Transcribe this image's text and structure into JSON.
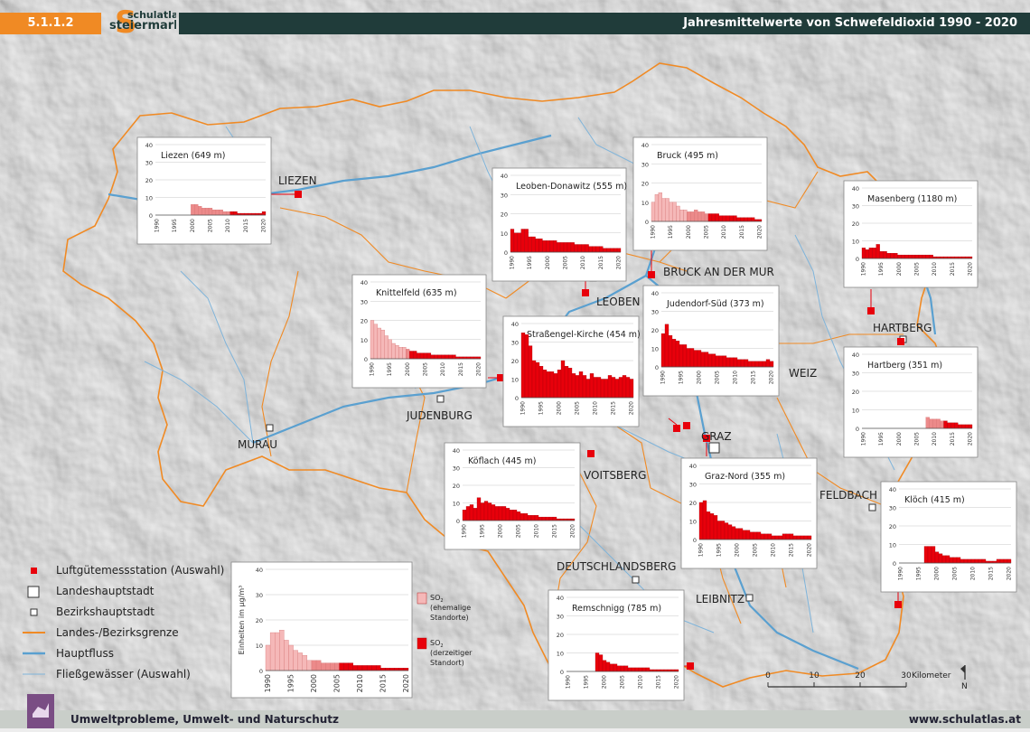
{
  "header": {
    "section_number": "5.1.1.2",
    "logo_line1": "schulatlas",
    "logo_line2": "steiermark",
    "title": "Jahresmittelwerte von Schwefeldioxid 1990 - 2020"
  },
  "footer": {
    "left_text": "Umweltprobleme, Umwelt- und Naturschutz",
    "right_text": "www.schulatlas.at"
  },
  "colors": {
    "header_orange": "#f08a24",
    "header_dark": "#203c3a",
    "former_site": "#f5b8b8",
    "former_site_dark": "#ec8a8a",
    "current_site": "#e8000b",
    "border": "#f08a24",
    "river": "#5aa0d0",
    "footer_icon": "#7a4d84"
  },
  "places": [
    {
      "name": "LIEZEN"
    },
    {
      "name": "LEOBEN"
    },
    {
      "name": "BRUCK AN DER MUR"
    },
    {
      "name": "HARTBERG"
    },
    {
      "name": "WEIZ"
    },
    {
      "name": "GRAZ"
    },
    {
      "name": "JUDENBURG"
    },
    {
      "name": "MURAU"
    },
    {
      "name": "VOITSBERG"
    },
    {
      "name": "FELDBACH"
    },
    {
      "name": "DEUTSCHLANDSBERG"
    },
    {
      "name": "LEIBNITZ"
    }
  ],
  "legend": {
    "items": [
      {
        "label": "Luftgütemessstation (Auswahl)",
        "icon": "station-square-red"
      },
      {
        "label": "Landeshauptstadt",
        "icon": "capital-square"
      },
      {
        "label": "Bezirkshauptstadt",
        "icon": "district-capital-square"
      },
      {
        "label": "Landes-/Bezirksgrenze",
        "icon": "border-line-orange"
      },
      {
        "label": "Hauptfluss",
        "icon": "main-river-line"
      },
      {
        "label": "Fließgewässer (Auswahl)",
        "icon": "stream-line"
      }
    ],
    "former_label": [
      "SO",
      "2",
      "(ehemalige",
      "Standorte)"
    ],
    "current_label": [
      "SO",
      "2",
      "(derzeitiger",
      "Standort)"
    ]
  },
  "scalebar": {
    "ticks": [
      "0",
      "10",
      "20",
      "30"
    ],
    "unit": "Kilometer",
    "north": "N"
  },
  "chart_data": [
    {
      "type": "bar",
      "title": "Liezen (649 m)",
      "ylim": [
        0,
        40
      ],
      "yticks": [
        "0",
        "10",
        "20",
        "30",
        "40"
      ],
      "xticks": [
        "1990",
        "1995",
        "2000",
        "2005",
        "2010",
        "2015",
        "2020"
      ],
      "start_year": 1990,
      "former_until": 2010,
      "values": [
        null,
        null,
        null,
        null,
        null,
        null,
        null,
        null,
        null,
        null,
        6,
        6,
        5,
        4,
        4,
        4,
        3,
        3,
        3,
        2,
        2,
        2,
        2,
        1,
        1,
        1,
        1,
        1,
        1,
        1,
        2
      ]
    },
    {
      "type": "bar",
      "title": "Leoben-Donawitz (555 m)",
      "ylim": [
        0,
        40
      ],
      "yticks": [
        "0",
        "10",
        "20",
        "30",
        "40"
      ],
      "xticks": [
        "1990",
        "1995",
        "2000",
        "2005",
        "2010",
        "2015",
        "2020"
      ],
      "start_year": 1990,
      "former_until": 1989,
      "values": [
        12,
        10,
        10,
        12,
        12,
        8,
        8,
        7,
        7,
        6,
        6,
        6,
        6,
        5,
        5,
        5,
        5,
        5,
        4,
        4,
        4,
        4,
        3,
        3,
        3,
        3,
        2,
        2,
        2,
        2,
        2
      ]
    },
    {
      "type": "bar",
      "title": "Bruck (495 m)",
      "ylim": [
        0,
        40
      ],
      "yticks": [
        "0",
        "10",
        "20",
        "30",
        "40"
      ],
      "xticks": [
        "1990",
        "1995",
        "2000",
        "2005",
        "2010",
        "2015",
        "2020"
      ],
      "start_year": 1990,
      "former_until": 2005,
      "values": [
        10,
        14,
        15,
        12,
        12,
        10,
        10,
        8,
        6,
        6,
        5,
        5,
        6,
        5,
        5,
        4,
        4,
        4,
        4,
        3,
        3,
        3,
        3,
        3,
        2,
        2,
        2,
        2,
        2,
        1,
        1
      ]
    },
    {
      "type": "bar",
      "title": "Masenberg (1180 m)",
      "ylim": [
        0,
        40
      ],
      "yticks": [
        "0",
        "10",
        "20",
        "30",
        "40"
      ],
      "xticks": [
        "1990",
        "1995",
        "2000",
        "2005",
        "2010",
        "2015",
        "2020"
      ],
      "start_year": 1990,
      "former_until": 1989,
      "values": [
        6,
        5,
        6,
        6,
        8,
        4,
        4,
        3,
        3,
        3,
        2,
        2,
        2,
        2,
        2,
        2,
        2,
        2,
        2,
        2,
        1,
        1,
        1,
        1,
        1,
        1,
        1,
        1,
        1,
        1,
        1
      ]
    },
    {
      "type": "bar",
      "title": "Knittelfeld (635 m)",
      "ylim": [
        0,
        40
      ],
      "yticks": [
        "0",
        "10",
        "20",
        "30",
        "40"
      ],
      "xticks": [
        "1990",
        "1995",
        "2000",
        "2005",
        "2010",
        "2015",
        "2020"
      ],
      "start_year": 1990,
      "former_until": 2000,
      "values": [
        20,
        18,
        16,
        15,
        12,
        10,
        8,
        7,
        6,
        6,
        5,
        4,
        4,
        3,
        3,
        3,
        3,
        2,
        2,
        2,
        2,
        2,
        2,
        2,
        1,
        1,
        1,
        1,
        1,
        1,
        1
      ]
    },
    {
      "type": "bar",
      "title": "Straßengel-Kirche (454 m)",
      "ylim": [
        0,
        40
      ],
      "yticks": [
        "0",
        "10",
        "20",
        "30",
        "40"
      ],
      "xticks": [
        "1990",
        "1995",
        "2000",
        "2005",
        "2010",
        "2015",
        "2020"
      ],
      "start_year": 1990,
      "former_until": 1989,
      "values": [
        35,
        34,
        28,
        20,
        19,
        17,
        15,
        14,
        14,
        13,
        15,
        20,
        17,
        16,
        13,
        12,
        14,
        12,
        10,
        13,
        11,
        11,
        10,
        10,
        12,
        11,
        10,
        11,
        12,
        11,
        10
      ]
    },
    {
      "type": "bar",
      "title": "Judendorf-Süd (373 m)",
      "ylim": [
        0,
        40
      ],
      "yticks": [
        "0",
        "10",
        "20",
        "30",
        "40"
      ],
      "xticks": [
        "1990",
        "1995",
        "2000",
        "2005",
        "2010",
        "2015",
        "2020"
      ],
      "start_year": 1990,
      "former_until": 1989,
      "values": [
        18,
        23,
        17,
        15,
        14,
        12,
        12,
        10,
        10,
        9,
        9,
        8,
        8,
        7,
        7,
        6,
        6,
        6,
        5,
        5,
        5,
        4,
        4,
        4,
        3,
        3,
        3,
        3,
        3,
        4,
        3
      ]
    },
    {
      "type": "bar",
      "title": "Hartberg (351 m)",
      "ylim": [
        0,
        40
      ],
      "yticks": [
        "0",
        "10",
        "20",
        "30",
        "40"
      ],
      "xticks": [
        "1990",
        "1995",
        "2000",
        "2005",
        "2010",
        "2015",
        "2020"
      ],
      "start_year": 1990,
      "former_until": 2012,
      "values": [
        null,
        null,
        null,
        null,
        null,
        null,
        null,
        null,
        null,
        null,
        null,
        null,
        null,
        null,
        null,
        null,
        null,
        null,
        6,
        5,
        5,
        5,
        4,
        4,
        3,
        3,
        3,
        2,
        2,
        2,
        2
      ]
    },
    {
      "type": "bar",
      "title": "Köflach (445 m)",
      "ylim": [
        0,
        40
      ],
      "yticks": [
        "0",
        "10",
        "20",
        "30",
        "40"
      ],
      "xticks": [
        "1990",
        "1995",
        "2000",
        "2005",
        "2010",
        "2015",
        "2020"
      ],
      "start_year": 1990,
      "former_until": 1989,
      "values": [
        6,
        8,
        9,
        7,
        13,
        10,
        11,
        10,
        9,
        8,
        8,
        8,
        7,
        6,
        6,
        5,
        4,
        4,
        3,
        3,
        3,
        2,
        2,
        2,
        2,
        2,
        1,
        1,
        1,
        1,
        1
      ]
    },
    {
      "type": "bar",
      "title": "Graz-Nord (355 m)",
      "ylim": [
        0,
        40
      ],
      "yticks": [
        "0",
        "10",
        "20",
        "30",
        "40"
      ],
      "xticks": [
        "1990",
        "1995",
        "2000",
        "2005",
        "2010",
        "2015",
        "2020"
      ],
      "start_year": 1990,
      "former_until": 1989,
      "values": [
        20,
        21,
        15,
        14,
        13,
        10,
        10,
        9,
        8,
        7,
        6,
        6,
        5,
        5,
        4,
        4,
        4,
        3,
        3,
        3,
        2,
        2,
        2,
        3,
        3,
        3,
        2,
        2,
        2,
        2,
        2
      ]
    },
    {
      "type": "bar",
      "title": "Klöch (415 m)",
      "ylim": [
        0,
        40
      ],
      "yticks": [
        "0",
        "10",
        "20",
        "30",
        "40"
      ],
      "xticks": [
        "1990",
        "1995",
        "2000",
        "2005",
        "2010",
        "2015",
        "2020"
      ],
      "start_year": 1990,
      "former_until": 1989,
      "values": [
        null,
        null,
        null,
        null,
        null,
        null,
        null,
        9,
        9,
        9,
        6,
        5,
        4,
        4,
        3,
        3,
        3,
        2,
        2,
        2,
        2,
        2,
        2,
        2,
        1,
        1,
        1,
        2,
        2,
        2,
        2
      ]
    },
    {
      "type": "bar",
      "title": "Remschnigg (785 m)",
      "ylim": [
        0,
        40
      ],
      "yticks": [
        "0",
        "10",
        "20",
        "30",
        "40"
      ],
      "xticks": [
        "1990",
        "1995",
        "2000",
        "2005",
        "2010",
        "2015",
        "2020"
      ],
      "start_year": 1990,
      "former_until": 1989,
      "values": [
        null,
        null,
        null,
        null,
        null,
        null,
        null,
        null,
        10,
        9,
        6,
        5,
        4,
        4,
        3,
        3,
        3,
        2,
        2,
        2,
        2,
        2,
        2,
        1,
        1,
        1,
        1,
        1,
        1,
        1,
        1
      ]
    },
    {
      "type": "bar",
      "title": "",
      "ylabel": "Einheiten im µg/m³",
      "ylim": [
        0,
        40
      ],
      "yticks": [
        "0",
        "10",
        "20",
        "30",
        "40"
      ],
      "xticks": [
        "1990",
        "1995",
        "2000",
        "2005",
        "2010",
        "2015",
        "2020"
      ],
      "start_year": 1990,
      "former_until": 2005,
      "values": [
        10,
        15,
        15,
        16,
        12,
        10,
        8,
        7,
        6,
        4,
        4,
        4,
        3,
        3,
        3,
        3,
        3,
        3,
        3,
        2,
        2,
        2,
        2,
        2,
        2,
        1,
        1,
        1,
        1,
        1,
        1
      ]
    }
  ]
}
